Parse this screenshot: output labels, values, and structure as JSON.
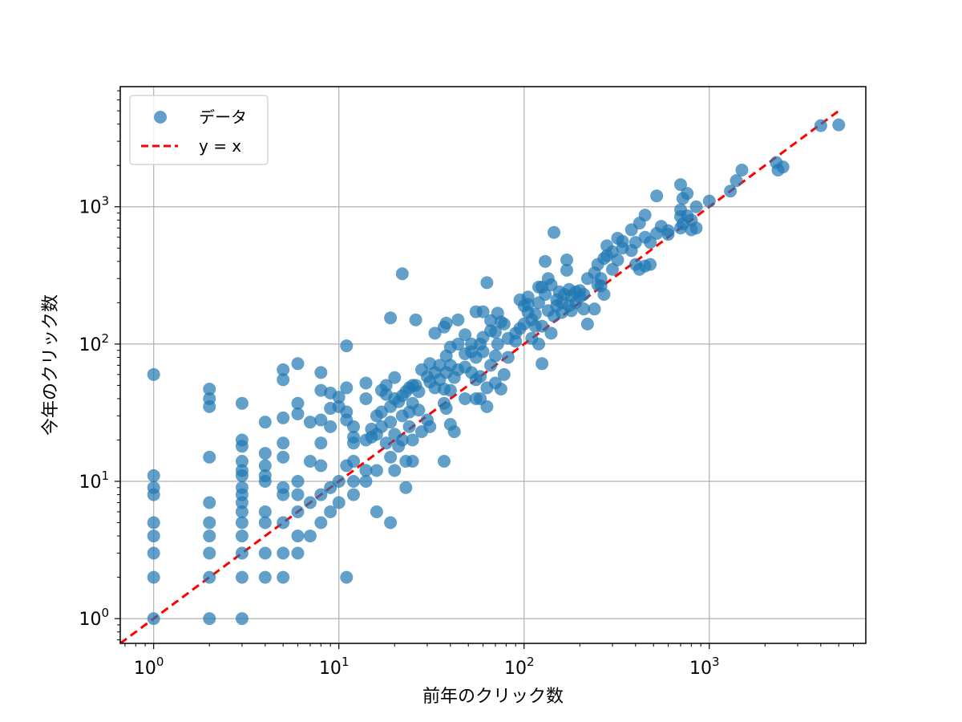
{
  "chart_data": {
    "type": "scatter",
    "xscale": "log",
    "yscale": "log",
    "xlabel": "前年のクリック数",
    "ylabel": "今年のクリック数",
    "xlim": [
      0.66,
      7000
    ],
    "ylim": [
      0.66,
      7500
    ],
    "grid": true,
    "legend_position": "top-left",
    "x_ticks": [
      {
        "value": 1,
        "label": "10",
        "exp": "0"
      },
      {
        "value": 10,
        "label": "10",
        "exp": "1"
      },
      {
        "value": 100,
        "label": "10",
        "exp": "2"
      },
      {
        "value": 1000,
        "label": "10",
        "exp": "3"
      }
    ],
    "y_ticks": [
      {
        "value": 1,
        "label": "10",
        "exp": "0"
      },
      {
        "value": 10,
        "label": "10",
        "exp": "1"
      },
      {
        "value": 100,
        "label": "10",
        "exp": "2"
      },
      {
        "value": 1000,
        "label": "10",
        "exp": "3"
      }
    ],
    "series": [
      {
        "name": "データ",
        "kind": "scatter",
        "color": "#1f77b4",
        "points": [
          [
            1,
            1
          ],
          [
            1,
            2
          ],
          [
            1,
            3
          ],
          [
            1,
            4
          ],
          [
            1,
            5
          ],
          [
            1,
            8
          ],
          [
            1,
            9
          ],
          [
            1,
            11
          ],
          [
            1,
            60
          ],
          [
            2,
            1
          ],
          [
            2,
            2
          ],
          [
            2,
            3
          ],
          [
            2,
            4
          ],
          [
            2,
            5
          ],
          [
            2,
            7
          ],
          [
            2,
            15
          ],
          [
            2,
            35
          ],
          [
            2,
            40
          ],
          [
            2,
            47
          ],
          [
            3,
            1
          ],
          [
            3,
            2
          ],
          [
            3,
            3
          ],
          [
            3,
            4
          ],
          [
            3,
            5
          ],
          [
            3,
            6
          ],
          [
            3,
            7
          ],
          [
            3,
            8
          ],
          [
            3,
            9
          ],
          [
            3,
            11
          ],
          [
            3,
            12
          ],
          [
            3,
            14
          ],
          [
            3,
            18
          ],
          [
            3,
            20
          ],
          [
            3,
            37
          ],
          [
            4,
            2
          ],
          [
            4,
            3
          ],
          [
            4,
            5
          ],
          [
            4,
            6
          ],
          [
            4,
            10
          ],
          [
            4,
            11
          ],
          [
            4,
            13
          ],
          [
            4,
            16
          ],
          [
            4,
            27
          ],
          [
            5,
            2
          ],
          [
            5,
            3
          ],
          [
            5,
            5
          ],
          [
            5,
            8
          ],
          [
            5,
            9
          ],
          [
            5,
            15
          ],
          [
            5,
            19
          ],
          [
            5,
            29
          ],
          [
            5,
            55
          ],
          [
            5,
            65
          ],
          [
            6,
            3
          ],
          [
            6,
            4
          ],
          [
            6,
            6
          ],
          [
            6,
            8
          ],
          [
            6,
            10
          ],
          [
            6,
            31
          ],
          [
            6,
            37
          ],
          [
            6,
            72
          ],
          [
            7,
            4
          ],
          [
            7,
            7
          ],
          [
            7,
            14
          ],
          [
            7,
            27
          ],
          [
            8,
            5
          ],
          [
            8,
            8
          ],
          [
            8,
            13
          ],
          [
            8,
            19
          ],
          [
            8,
            28
          ],
          [
            8,
            46
          ],
          [
            8,
            62
          ],
          [
            9,
            6
          ],
          [
            9,
            9
          ],
          [
            9,
            25
          ],
          [
            9,
            34
          ],
          [
            9,
            44
          ],
          [
            10,
            7
          ],
          [
            10,
            10
          ],
          [
            10,
            35
          ],
          [
            10,
            41
          ],
          [
            11,
            2
          ],
          [
            11,
            13
          ],
          [
            11,
            28
          ],
          [
            11,
            32
          ],
          [
            11,
            48
          ],
          [
            11,
            97
          ],
          [
            12,
            8
          ],
          [
            12,
            10
          ],
          [
            12,
            14
          ],
          [
            12,
            19
          ],
          [
            12,
            21
          ],
          [
            12,
            25
          ],
          [
            14,
            10
          ],
          [
            14,
            12
          ],
          [
            14,
            20
          ],
          [
            14,
            52
          ],
          [
            14,
            40
          ],
          [
            15,
            21
          ],
          [
            15,
            24
          ],
          [
            16,
            6
          ],
          [
            16,
            12
          ],
          [
            16,
            22
          ],
          [
            16,
            30
          ],
          [
            17,
            25
          ],
          [
            17,
            32
          ],
          [
            17,
            46
          ],
          [
            18,
            19
          ],
          [
            18,
            43
          ],
          [
            18,
            50
          ],
          [
            19,
            5
          ],
          [
            19,
            15
          ],
          [
            19,
            27
          ],
          [
            19,
            35
          ],
          [
            19,
            155
          ],
          [
            20,
            12
          ],
          [
            20,
            22
          ],
          [
            20,
            40
          ],
          [
            20,
            57
          ],
          [
            21,
            18
          ],
          [
            21,
            38
          ],
          [
            22,
            20
          ],
          [
            22,
            30
          ],
          [
            22,
            42
          ],
          [
            22,
            325
          ],
          [
            23,
            9
          ],
          [
            23,
            14
          ],
          [
            23,
            45
          ],
          [
            24,
            25
          ],
          [
            24,
            32
          ],
          [
            24,
            48
          ],
          [
            25,
            14
          ],
          [
            25,
            20
          ],
          [
            25,
            37
          ],
          [
            25,
            50
          ],
          [
            26,
            50
          ],
          [
            26,
            150
          ],
          [
            27,
            33
          ],
          [
            27,
            45
          ],
          [
            28,
            23
          ],
          [
            28,
            65
          ],
          [
            30,
            28
          ],
          [
            30,
            58
          ],
          [
            31,
            25
          ],
          [
            31,
            53
          ],
          [
            31,
            72
          ],
          [
            33,
            48
          ],
          [
            33,
            62
          ],
          [
            33,
            120
          ],
          [
            35,
            55
          ],
          [
            35,
            70
          ],
          [
            37,
            14
          ],
          [
            37,
            37
          ],
          [
            37,
            47
          ],
          [
            37,
            133
          ],
          [
            38,
            34
          ],
          [
            38,
            62
          ],
          [
            38,
            82
          ],
          [
            38,
            142
          ],
          [
            40,
            26
          ],
          [
            40,
            46
          ],
          [
            40,
            70
          ],
          [
            40,
            95
          ],
          [
            42,
            23
          ],
          [
            42,
            57
          ],
          [
            44,
            65
          ],
          [
            44,
            100
          ],
          [
            44,
            150
          ],
          [
            48,
            40
          ],
          [
            48,
            68
          ],
          [
            48,
            85
          ],
          [
            48,
            117
          ],
          [
            52,
            62
          ],
          [
            52,
            88
          ],
          [
            52,
            100
          ],
          [
            55,
            40
          ],
          [
            55,
            55
          ],
          [
            55,
            80
          ],
          [
            55,
            172
          ],
          [
            58,
            40
          ],
          [
            58,
            58
          ],
          [
            58,
            100
          ],
          [
            60,
            88
          ],
          [
            60,
            112
          ],
          [
            60,
            172
          ],
          [
            63,
            35
          ],
          [
            63,
            48
          ],
          [
            63,
            280
          ],
          [
            66,
            70
          ],
          [
            66,
            125
          ],
          [
            66,
            148
          ],
          [
            70,
            52
          ],
          [
            70,
            82
          ],
          [
            70,
            122
          ],
          [
            72,
            100
          ],
          [
            72,
            168
          ],
          [
            75,
            47
          ],
          [
            75,
            145
          ],
          [
            78,
            60
          ],
          [
            78,
            140
          ],
          [
            82,
            80
          ],
          [
            82,
            110
          ],
          [
            90,
            105
          ],
          [
            90,
            120
          ],
          [
            95,
            130
          ],
          [
            95,
            210
          ],
          [
            100,
            140
          ],
          [
            100,
            190
          ],
          [
            105,
            170
          ],
          [
            105,
            195
          ],
          [
            105,
            220
          ],
          [
            110,
            110
          ],
          [
            110,
            150
          ],
          [
            115,
            135
          ],
          [
            115,
            165
          ],
          [
            120,
            100
          ],
          [
            120,
            200
          ],
          [
            120,
            260
          ],
          [
            125,
            72
          ],
          [
            125,
            135
          ],
          [
            125,
            260
          ],
          [
            130,
            230
          ],
          [
            130,
            400
          ],
          [
            135,
            175
          ],
          [
            135,
            300
          ],
          [
            140,
            120
          ],
          [
            140,
            270
          ],
          [
            145,
            160
          ],
          [
            145,
            650
          ],
          [
            150,
            190
          ],
          [
            150,
            210
          ],
          [
            155,
            240
          ],
          [
            160,
            170
          ],
          [
            160,
            200
          ],
          [
            165,
            230
          ],
          [
            170,
            345
          ],
          [
            170,
            410
          ],
          [
            175,
            190
          ],
          [
            175,
            250
          ],
          [
            180,
            175
          ],
          [
            180,
            225
          ],
          [
            190,
            200
          ],
          [
            190,
            240
          ],
          [
            200,
            220
          ],
          [
            200,
            245
          ],
          [
            210,
            180
          ],
          [
            210,
            230
          ],
          [
            220,
            140
          ],
          [
            220,
            300
          ],
          [
            240,
            180
          ],
          [
            240,
            330
          ],
          [
            250,
            270
          ],
          [
            250,
            380
          ],
          [
            260,
            265
          ],
          [
            260,
            300
          ],
          [
            270,
            230
          ],
          [
            270,
            420
          ],
          [
            280,
            440
          ],
          [
            280,
            520
          ],
          [
            300,
            350
          ],
          [
            300,
            470
          ],
          [
            320,
            410
          ],
          [
            320,
            590
          ],
          [
            340,
            500
          ],
          [
            340,
            560
          ],
          [
            380,
            680
          ],
          [
            380,
            480
          ],
          [
            400,
            380
          ],
          [
            400,
            550
          ],
          [
            420,
            350
          ],
          [
            420,
            760
          ],
          [
            450,
            370
          ],
          [
            450,
            600
          ],
          [
            450,
            870
          ],
          [
            480,
            380
          ],
          [
            480,
            550
          ],
          [
            520,
            640
          ],
          [
            520,
            1200
          ],
          [
            550,
            720
          ],
          [
            600,
            630
          ],
          [
            600,
            670
          ],
          [
            700,
            700
          ],
          [
            700,
            850
          ],
          [
            700,
            950
          ],
          [
            700,
            1450
          ],
          [
            720,
            750
          ],
          [
            720,
            1150
          ],
          [
            760,
            1250
          ],
          [
            760,
            860
          ],
          [
            800,
            680
          ],
          [
            800,
            800
          ],
          [
            850,
            700
          ],
          [
            850,
            1000
          ],
          [
            1000,
            1100
          ],
          [
            1300,
            1300
          ],
          [
            1400,
            1550
          ],
          [
            1500,
            1850
          ],
          [
            2300,
            2100
          ],
          [
            2350,
            1850
          ],
          [
            2500,
            1950
          ],
          [
            4000,
            3900
          ],
          [
            5000,
            3950
          ]
        ]
      },
      {
        "name": "y = x",
        "kind": "line",
        "color": "#ff0000",
        "points": [
          [
            0.66,
            0.66
          ],
          [
            5000,
            5000
          ]
        ]
      }
    ]
  }
}
